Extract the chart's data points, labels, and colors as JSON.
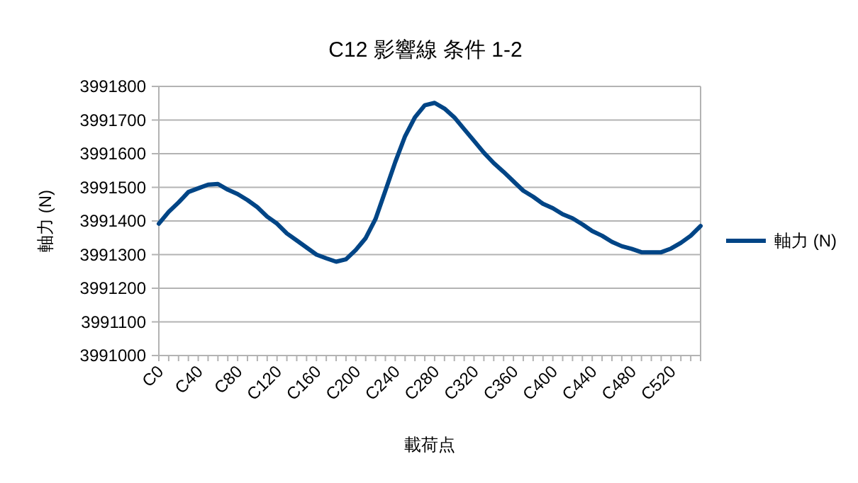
{
  "chart_data": {
    "type": "line",
    "title": "C12 影響線 条件 1-2",
    "xlabel": "載荷点",
    "ylabel": "軸力 (N)",
    "categories": [
      "C0",
      null,
      null,
      null,
      "C40",
      null,
      null,
      null,
      "C80",
      null,
      null,
      null,
      "C120",
      null,
      null,
      null,
      "C160",
      null,
      null,
      null,
      "C200",
      null,
      null,
      null,
      "C240",
      null,
      null,
      null,
      "C280",
      null,
      null,
      null,
      "C320",
      null,
      null,
      null,
      "C360",
      null,
      null,
      null,
      "C400",
      null,
      null,
      null,
      "C440",
      null,
      null,
      null,
      "C480",
      null,
      null,
      null,
      "C520",
      null,
      null,
      null
    ],
    "series": [
      {
        "name": "軸力 (N)",
        "color": "#004586",
        "values": [
          3991392,
          3991427,
          3991455,
          3991486,
          3991497,
          3991508,
          3991510,
          3991493,
          3991480,
          3991462,
          3991441,
          3991413,
          3991392,
          3991363,
          3991342,
          3991321,
          3991300,
          3991289,
          3991279,
          3991286,
          3991314,
          3991349,
          3991406,
          3991490,
          3991575,
          3991652,
          3991708,
          3991744,
          3991751,
          3991734,
          3991708,
          3991673,
          3991638,
          3991603,
          3991572,
          3991546,
          3991518,
          3991490,
          3991472,
          3991451,
          3991438,
          3991420,
          3991408,
          3991390,
          3991370,
          3991356,
          3991338,
          3991325,
          3991317,
          3991307,
          3991307,
          3991307,
          3991318,
          3991335,
          3991356,
          3991385
        ]
      }
    ],
    "ylim": [
      3991000,
      3991800
    ],
    "yticks": [
      3991000,
      3991100,
      3991200,
      3991300,
      3991400,
      3991500,
      3991600,
      3991700,
      3991800
    ],
    "grid": "y",
    "legend": "right"
  }
}
